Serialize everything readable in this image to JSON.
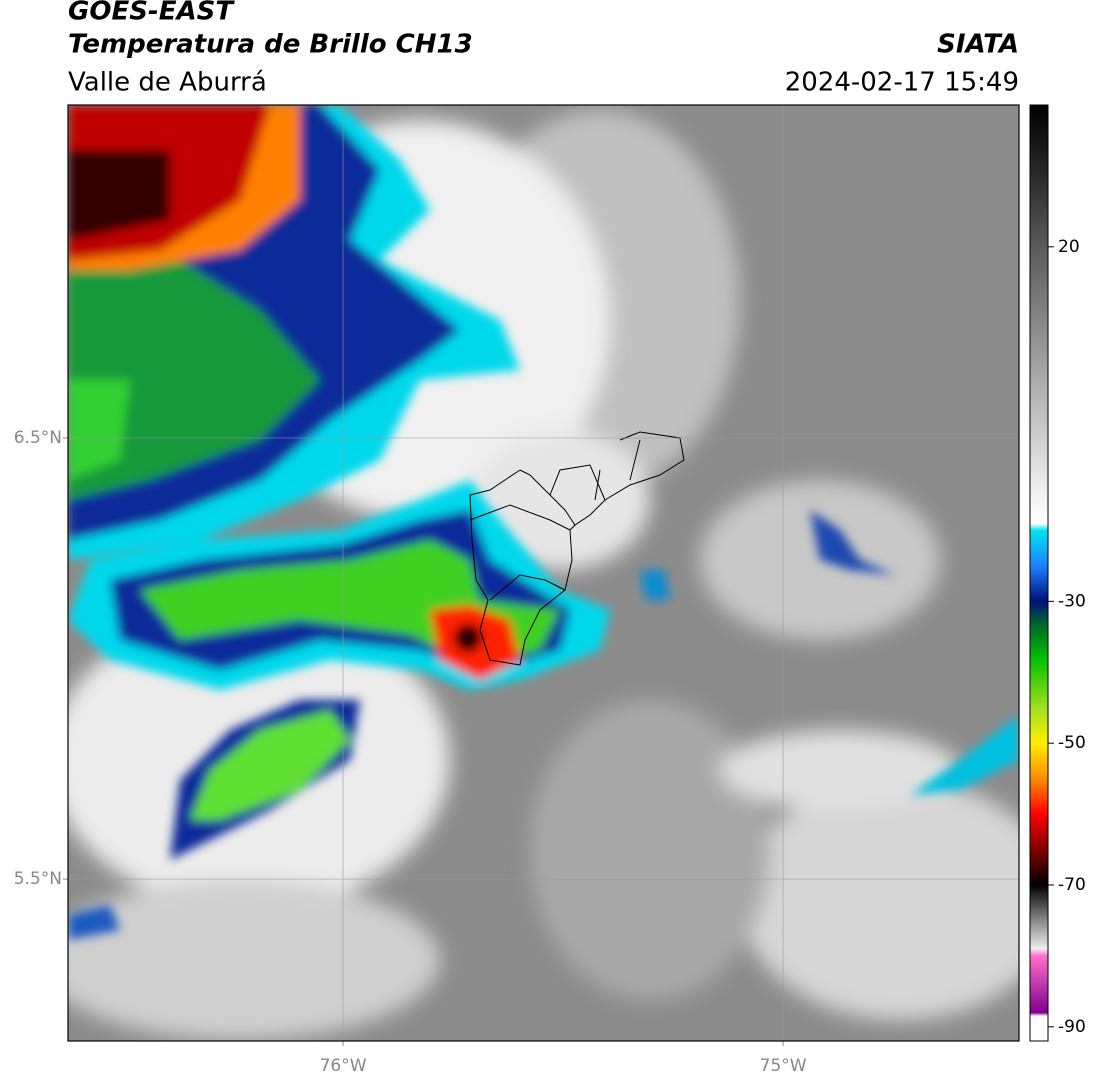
{
  "header": {
    "title": "GOES-EAST",
    "subtitle": "Temperatura de Brillo CH13",
    "region": "Valle de Aburrá",
    "source": "SIATA",
    "datetime": "2024-02-17 15:49"
  },
  "map": {
    "xlim": [
      -76.625,
      -74.464
    ],
    "ylim": [
      5.133,
      7.255
    ],
    "xticks": [
      {
        "value": -76,
        "label": "76°W"
      },
      {
        "value": -75,
        "label": "75°W"
      }
    ],
    "yticks": [
      {
        "value": 6.5,
        "label": "6.5°N"
      },
      {
        "value": 5.5,
        "label": "5.5°N"
      }
    ],
    "grid": true
  },
  "colorbar": {
    "clim": [
      -92,
      40
    ],
    "ticks": [
      20,
      -30,
      -50,
      -70,
      -90
    ],
    "stops": [
      {
        "value": 40,
        "color": "#000000"
      },
      {
        "value": 30,
        "color": "#2a2a2a"
      },
      {
        "value": 20,
        "color": "#5a5a5a"
      },
      {
        "value": 0,
        "color": "#b0b0b0"
      },
      {
        "value": -15,
        "color": "#f2f2f2"
      },
      {
        "value": -19,
        "color": "#ffffff"
      },
      {
        "value": -20,
        "color": "#00e5ee"
      },
      {
        "value": -25,
        "color": "#1e7fff"
      },
      {
        "value": -30,
        "color": "#00107a"
      },
      {
        "value": -33,
        "color": "#006030"
      },
      {
        "value": -38,
        "color": "#00c000"
      },
      {
        "value": -45,
        "color": "#a0e020"
      },
      {
        "value": -50,
        "color": "#ffee00"
      },
      {
        "value": -55,
        "color": "#ff8c00"
      },
      {
        "value": -60,
        "color": "#ff0000"
      },
      {
        "value": -65,
        "color": "#800000"
      },
      {
        "value": -70,
        "color": "#000000"
      },
      {
        "value": -75,
        "color": "#888888"
      },
      {
        "value": -79,
        "color": "#eeeeee"
      },
      {
        "value": -80,
        "color": "#ff70c8"
      },
      {
        "value": -88,
        "color": "#800090"
      },
      {
        "value": -88.5,
        "color": "#ffffff"
      },
      {
        "value": -92,
        "color": "#ffffff"
      }
    ]
  }
}
